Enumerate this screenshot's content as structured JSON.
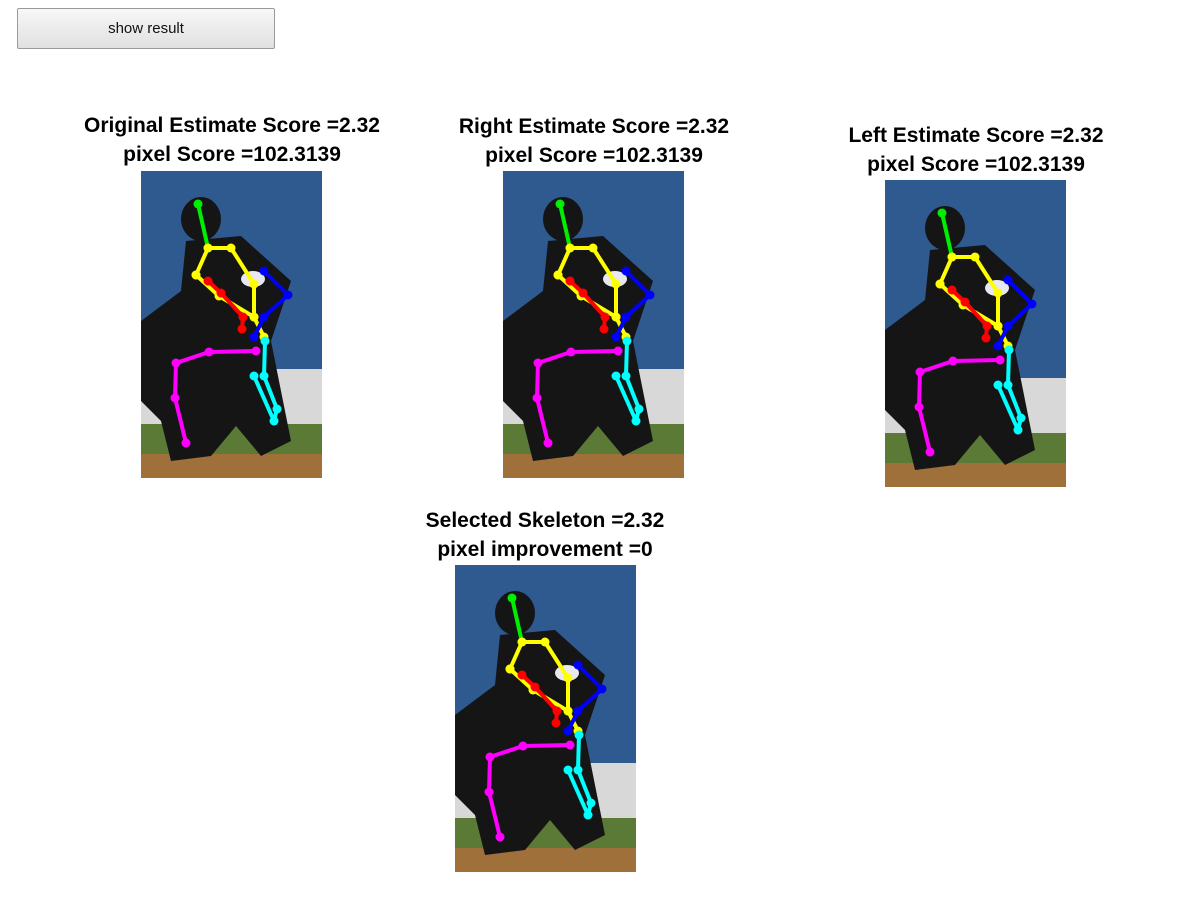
{
  "button": {
    "label": "show result"
  },
  "panels": [
    {
      "title": "Original Estimate Score =2.32",
      "subtitle": "pixel Score =102.3139"
    },
    {
      "title": "Right Estimate Score =2.32",
      "subtitle": "pixel Score =102.3139"
    },
    {
      "title": "Left Estimate Score =2.32",
      "subtitle": "pixel Score =102.3139"
    },
    {
      "title": "Selected Skeleton =2.32",
      "subtitle": "pixel improvement =0"
    }
  ],
  "colors": {
    "head": "#00ee00",
    "torso": "#ffff00",
    "left_arm": "#0000ff",
    "right_arm": "#ff0000",
    "left_leg": "#ff00ff",
    "right_leg": "#00ffff",
    "sky": "#2f5a90",
    "wall": "#d8d8d8",
    "grass": "#5a7a35",
    "dirt": "#a0703a",
    "player": "#151515"
  }
}
